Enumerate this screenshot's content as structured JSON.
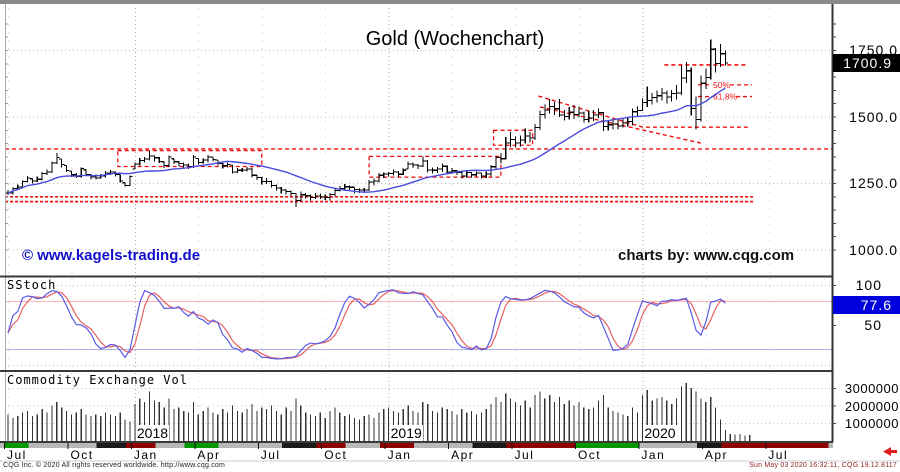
{
  "header": {
    "title": "Gold (Wochenchart)"
  },
  "watermark": {
    "text": "© www.kagels-trading.de",
    "color": "#1010cc"
  },
  "credit": {
    "text": "charts by: www.cqg.com"
  },
  "panels": {
    "stoch_label": "SStoch",
    "volume_label": "Commodity Exchange Vol"
  },
  "status_bar": {
    "left": "CQG Inc. © 2020 All rights reserved worldwide. http://www.cqg.com",
    "right": "Sun May 03 2020 16:32:11, CQG 19.12.8117"
  },
  "price_axis": {
    "ticks": [
      {
        "label": "1750.0",
        "value": 1750
      },
      {
        "label": "1500.0",
        "value": 1500
      },
      {
        "label": "1250.0",
        "value": 1250
      },
      {
        "label": "1000.0",
        "value": 1000
      }
    ],
    "last": {
      "label": "1700.9",
      "value": 1700.9,
      "bg": "#000000",
      "fg": "#ffffff"
    }
  },
  "stoch_axis": {
    "ticks": [
      {
        "label": "100",
        "value": 100
      },
      {
        "label": "50",
        "value": 50
      }
    ],
    "last": {
      "label": "77.6",
      "value": 77.6,
      "bg": "#0000dd",
      "fg": "#ffffff"
    }
  },
  "volume_axis": {
    "ticks": [
      {
        "label": "3000000",
        "value": 3000000
      },
      {
        "label": "2000000",
        "value": 2000000
      },
      {
        "label": "1000000",
        "value": 1000000
      }
    ]
  },
  "x_axis": {
    "months": [
      {
        "label": "Jul",
        "week": 0
      },
      {
        "label": "Oct",
        "week": 13
      },
      {
        "label": "Jan",
        "week": 26
      },
      {
        "label": "Apr",
        "week": 39
      },
      {
        "label": "Jul",
        "week": 52
      },
      {
        "label": "Oct",
        "week": 65
      },
      {
        "label": "Jan",
        "week": 78
      },
      {
        "label": "Apr",
        "week": 91
      },
      {
        "label": "Jul",
        "week": 104
      },
      {
        "label": "Oct",
        "week": 117
      },
      {
        "label": "Jan",
        "week": 130
      },
      {
        "label": "Apr",
        "week": 143
      },
      {
        "label": "Jul",
        "week": 156
      }
    ],
    "years": [
      {
        "label": "2018",
        "week": 26
      },
      {
        "label": "2019",
        "week": 78
      },
      {
        "label": "2020",
        "week": 130
      }
    ],
    "strip_segments": [
      {
        "f": 0,
        "t": 5,
        "c": "green"
      },
      {
        "f": 5,
        "t": 19,
        "c": "silver"
      },
      {
        "f": 19,
        "t": 25,
        "c": "black"
      },
      {
        "f": 25,
        "t": 31,
        "c": "darkred"
      },
      {
        "f": 31,
        "t": 37,
        "c": "silver"
      },
      {
        "f": 37,
        "t": 44,
        "c": "green"
      },
      {
        "f": 44,
        "t": 57,
        "c": "silver"
      },
      {
        "f": 57,
        "t": 64,
        "c": "black"
      },
      {
        "f": 64,
        "t": 70,
        "c": "darkred"
      },
      {
        "f": 70,
        "t": 77,
        "c": "silver"
      },
      {
        "f": 77,
        "t": 84,
        "c": "darkred"
      },
      {
        "f": 84,
        "t": 96,
        "c": "silver"
      },
      {
        "f": 96,
        "t": 103,
        "c": "black"
      },
      {
        "f": 103,
        "t": 117,
        "c": "darkred"
      },
      {
        "f": 117,
        "t": 130,
        "c": "green"
      },
      {
        "f": 130,
        "t": 142,
        "c": "silver"
      },
      {
        "f": 142,
        "t": 147,
        "c": "black"
      },
      {
        "f": 147,
        "t": 169,
        "c": "darkred"
      }
    ],
    "strip_colors": {
      "green": "#009900",
      "silver": "#b8b8b8",
      "black": "#1a1a1a",
      "darkred": "#8e0000"
    }
  },
  "icons": {
    "scroll_left_arrow_color": "#e02020"
  },
  "chart_data": {
    "type": "ohlc-bar with moving-average, slow-stochastic and volume sub-panels",
    "frequency": "weekly",
    "title": "Gold (Wochenchart)",
    "price": {
      "ylim": [
        985,
        1923
      ],
      "yticks": [
        1750,
        1500,
        1250,
        1000
      ],
      "minor_tick_step": 50,
      "ma_period": 20,
      "ma_color": "#4a4ae0",
      "bar_color": "#000000",
      "last_close": 1700.9,
      "bars_hlc": [
        [
          1224,
          1204,
          1212
        ],
        [
          1234,
          1207,
          1229
        ],
        [
          1244,
          1226,
          1235
        ],
        [
          1260,
          1231,
          1255
        ],
        [
          1276,
          1251,
          1269
        ],
        [
          1266,
          1248,
          1258
        ],
        [
          1274,
          1253,
          1264
        ],
        [
          1292,
          1260,
          1286
        ],
        [
          1300,
          1281,
          1291
        ],
        [
          1331,
          1288,
          1325
        ],
        [
          1362,
          1321,
          1346
        ],
        [
          1340,
          1308,
          1320
        ],
        [
          1316,
          1291,
          1297
        ],
        [
          1295,
          1273,
          1281
        ],
        [
          1288,
          1268,
          1275
        ],
        [
          1308,
          1271,
          1304
        ],
        [
          1300,
          1276,
          1281
        ],
        [
          1284,
          1264,
          1273
        ],
        [
          1282,
          1263,
          1269
        ],
        [
          1283,
          1266,
          1276
        ],
        [
          1296,
          1270,
          1287
        ],
        [
          1299,
          1280,
          1292
        ],
        [
          1294,
          1275,
          1282
        ],
        [
          1282,
          1251,
          1257
        ],
        [
          1251,
          1236,
          1240
        ],
        [
          1279,
          1238,
          1275
        ],
        [
          1327,
          1302,
          1322
        ],
        [
          1344,
          1316,
          1335
        ],
        [
          1348,
          1327,
          1340
        ],
        [
          1370,
          1335,
          1352
        ],
        [
          1354,
          1330,
          1345
        ],
        [
          1348,
          1325,
          1331
        ],
        [
          1330,
          1307,
          1316
        ],
        [
          1354,
          1310,
          1347
        ],
        [
          1341,
          1321,
          1330
        ],
        [
          1332,
          1312,
          1324
        ],
        [
          1328,
          1306,
          1318
        ],
        [
          1324,
          1303,
          1312
        ],
        [
          1356,
          1307,
          1347
        ],
        [
          1342,
          1320,
          1327
        ],
        [
          1342,
          1323,
          1336
        ],
        [
          1355,
          1327,
          1348
        ],
        [
          1348,
          1330,
          1338
        ],
        [
          1336,
          1315,
          1324
        ],
        [
          1326,
          1304,
          1315
        ],
        [
          1328,
          1308,
          1320
        ],
        [
          1318,
          1285,
          1292
        ],
        [
          1307,
          1287,
          1298
        ],
        [
          1306,
          1291,
          1299
        ],
        [
          1310,
          1294,
          1302
        ],
        [
          1309,
          1270,
          1279
        ],
        [
          1281,
          1262,
          1271
        ],
        [
          1272,
          1245,
          1255
        ],
        [
          1268,
          1247,
          1256
        ],
        [
          1259,
          1234,
          1241
        ],
        [
          1244,
          1222,
          1231
        ],
        [
          1235,
          1210,
          1223
        ],
        [
          1228,
          1206,
          1218
        ],
        [
          1221,
          1201,
          1211
        ],
        [
          1212,
          1160,
          1184
        ],
        [
          1218,
          1180,
          1206
        ],
        [
          1212,
          1192,
          1202
        ],
        [
          1206,
          1185,
          1196
        ],
        [
          1212,
          1189,
          1201
        ],
        [
          1210,
          1190,
          1198
        ],
        [
          1206,
          1186,
          1196
        ],
        [
          1212,
          1184,
          1207
        ],
        [
          1230,
          1200,
          1222
        ],
        [
          1239,
          1218,
          1230
        ],
        [
          1246,
          1222,
          1236
        ],
        [
          1240,
          1222,
          1234
        ],
        [
          1234,
          1210,
          1225
        ],
        [
          1230,
          1212,
          1223
        ],
        [
          1232,
          1214,
          1223
        ],
        [
          1262,
          1220,
          1254
        ],
        [
          1266,
          1240,
          1258
        ],
        [
          1288,
          1252,
          1279
        ],
        [
          1290,
          1268,
          1284
        ],
        [
          1292,
          1274,
          1286
        ],
        [
          1300,
          1278,
          1292
        ],
        [
          1296,
          1272,
          1283
        ],
        [
          1305,
          1280,
          1298
        ],
        [
          1331,
          1302,
          1322
        ],
        [
          1327,
          1306,
          1318
        ],
        [
          1322,
          1302,
          1314
        ],
        [
          1349,
          1310,
          1333
        ],
        [
          1336,
          1290,
          1299
        ],
        [
          1308,
          1285,
          1298
        ],
        [
          1311,
          1288,
          1302
        ],
        [
          1324,
          1292,
          1313
        ],
        [
          1316,
          1286,
          1292
        ],
        [
          1306,
          1284,
          1296
        ],
        [
          1299,
          1280,
          1290
        ],
        [
          1293,
          1266,
          1276
        ],
        [
          1296,
          1270,
          1289
        ],
        [
          1292,
          1270,
          1281
        ],
        [
          1294,
          1274,
          1287
        ],
        [
          1288,
          1267,
          1277
        ],
        [
          1293,
          1269,
          1284
        ],
        [
          1318,
          1275,
          1311
        ],
        [
          1352,
          1305,
          1346
        ],
        [
          1362,
          1324,
          1341
        ],
        [
          1422,
          1338,
          1400
        ],
        [
          1442,
          1385,
          1414
        ],
        [
          1424,
          1384,
          1400
        ],
        [
          1428,
          1388,
          1412
        ],
        [
          1454,
          1399,
          1426
        ],
        [
          1442,
          1402,
          1419
        ],
        [
          1472,
          1412,
          1458
        ],
        [
          1522,
          1450,
          1508
        ],
        [
          1546,
          1492,
          1524
        ],
        [
          1565,
          1511,
          1537
        ],
        [
          1555,
          1506,
          1529
        ],
        [
          1566,
          1498,
          1506
        ],
        [
          1524,
          1485,
          1500
        ],
        [
          1536,
          1489,
          1516
        ],
        [
          1543,
          1491,
          1507
        ],
        [
          1538,
          1496,
          1513
        ],
        [
          1519,
          1478,
          1489
        ],
        [
          1520,
          1477,
          1494
        ],
        [
          1525,
          1484,
          1505
        ],
        [
          1530,
          1494,
          1514
        ],
        [
          1516,
          1446,
          1463
        ],
        [
          1483,
          1448,
          1469
        ],
        [
          1486,
          1451,
          1472
        ],
        [
          1489,
          1452,
          1465
        ],
        [
          1491,
          1458,
          1476
        ],
        [
          1496,
          1462,
          1481
        ],
        [
          1530,
          1466,
          1518
        ],
        [
          1538,
          1502,
          1523
        ],
        [
          1568,
          1520,
          1552
        ],
        [
          1613,
          1536,
          1560
        ],
        [
          1589,
          1546,
          1571
        ],
        [
          1598,
          1552,
          1578
        ],
        [
          1608,
          1560,
          1588
        ],
        [
          1598,
          1548,
          1573
        ],
        [
          1600,
          1556,
          1586
        ],
        [
          1619,
          1564,
          1589
        ],
        [
          1691,
          1580,
          1645
        ],
        [
          1704,
          1626,
          1672
        ],
        [
          1684,
          1504,
          1530
        ],
        [
          1575,
          1451,
          1489
        ],
        [
          1654,
          1482,
          1625
        ],
        [
          1680,
          1603,
          1646
        ],
        [
          1789,
          1640,
          1753
        ],
        [
          1758,
          1666,
          1699
        ],
        [
          1772,
          1686,
          1736
        ],
        [
          1749,
          1692,
          1701
        ]
      ],
      "annotations": {
        "resistance_line": {
          "price": 1378,
          "from_week": -0.6,
          "to_week": 169
        },
        "support_zone_lines": [
          {
            "price": 1198,
            "from_week": -0.6,
            "to_week": 153
          },
          {
            "price": 1180,
            "from_week": -0.6,
            "to_week": 153
          }
        ],
        "boxes": [
          {
            "w1": 22.5,
            "w2": 52,
            "p1": 1312,
            "p2": 1372
          },
          {
            "w1": 74,
            "w2": 101,
            "p1": 1272,
            "p2": 1350
          },
          {
            "w1": 99.5,
            "w2": 107.5,
            "p1": 1392,
            "p2": 1448
          }
        ],
        "high_line": {
          "price": 1694,
          "from_week": 134.5,
          "to_week": 151.5
        },
        "trendlines": [
          {
            "pts": [
              [
                108.7,
                1577
              ],
              [
                130.1,
                1460
              ],
              [
                151.6,
                1460
              ]
            ]
          },
          {
            "pts": [
              [
                109,
                1536
              ],
              [
                142,
                1400
              ]
            ]
          }
        ],
        "fib_labels": [
          {
            "text": "50%",
            "price": 1619
          },
          {
            "text": "61,8%",
            "price": 1575
          }
        ],
        "color": "#f01010"
      }
    },
    "stochastic": {
      "label": "SStoch",
      "period": 14,
      "slow_k": 3,
      "slow_d": 3,
      "overbought": 80,
      "oversold": 20,
      "ylim": [
        0,
        100
      ],
      "k_color": "#5a5ae8",
      "d_color": "#e86060",
      "overbought_color": "#f8b8b8",
      "oversold_color": "#b0b0e8",
      "last_value": 77.6
    },
    "volume": {
      "label": "Commodity Exchange Vol",
      "ylim": [
        0,
        3500000
      ],
      "bar_color": "#333333",
      "values": [
        1500000,
        1300000,
        1400000,
        1600000,
        1700000,
        1400000,
        1500000,
        1800000,
        1600000,
        2000000,
        2200000,
        1900000,
        1700000,
        1500000,
        1600000,
        1800000,
        1500000,
        1400000,
        1500000,
        1400000,
        1600000,
        1500000,
        1400000,
        1600000,
        1200000,
        1100000,
        2100000,
        2400000,
        2200000,
        2800000,
        2300000,
        2200000,
        1900000,
        2400000,
        1800000,
        1900000,
        1700000,
        1600000,
        2200000,
        1500000,
        1700000,
        1900000,
        1600000,
        1500000,
        1800000,
        1600000,
        2000000,
        1700000,
        1600000,
        1800000,
        2100000,
        1700000,
        1900000,
        1800000,
        2000000,
        1700000,
        1500000,
        1900000,
        1700000,
        2400000,
        2000000,
        1600000,
        1500000,
        1400000,
        1600000,
        1300000,
        1700000,
        1900000,
        1600000,
        1400000,
        1500000,
        1300000,
        1200000,
        1400000,
        1500000,
        1300000,
        1600000,
        1800000,
        1900000,
        1700000,
        1600000,
        1800000,
        2000000,
        1700000,
        1600000,
        2200000,
        2100000,
        1700000,
        1600000,
        1900000,
        1800000,
        1700000,
        1500000,
        1800000,
        1600000,
        1700000,
        1500000,
        1600000,
        1800000,
        2100000,
        2500000,
        2200000,
        2700000,
        2400000,
        2200000,
        2000000,
        2300000,
        1900000,
        2600000,
        2800000,
        2400000,
        2600000,
        2200000,
        2500000,
        2100000,
        2300000,
        2000000,
        2200000,
        1900000,
        1800000,
        1900000,
        2300000,
        2600000,
        1900000,
        1700000,
        1600000,
        1500000,
        1400000,
        1900000,
        1600000,
        2600000,
        2900000,
        2300000,
        2400000,
        2500000,
        2300000,
        2100000,
        2400000,
        3100000,
        3300000,
        3000000,
        2800000,
        2400000,
        2200000,
        2500000,
        1900000,
        1200000,
        600000
      ],
      "trailing_values": [
        380000,
        340000,
        360000,
        300000,
        320000
      ]
    }
  }
}
